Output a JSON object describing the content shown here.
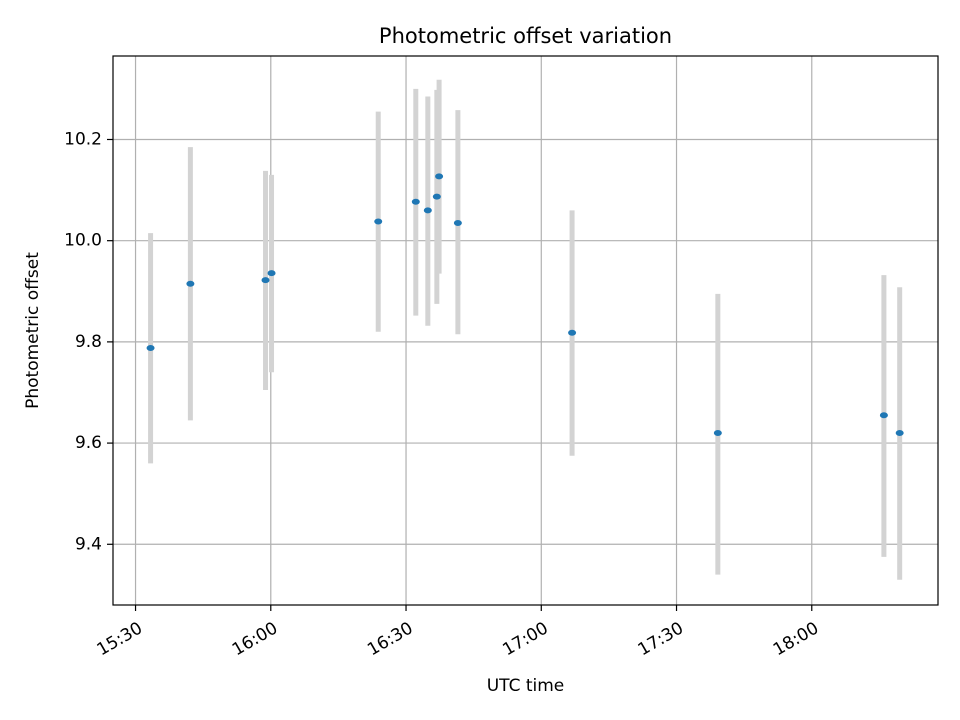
{
  "chart_data": {
    "type": "scatter",
    "title": "Photometric offset variation",
    "xlabel": "UTC time",
    "ylabel": "Photometric offset",
    "xlim": [
      "15:25",
      "18:28"
    ],
    "ylim": [
      9.28,
      10.365
    ],
    "grid": true,
    "x_ticks": [
      "15:30",
      "16:00",
      "16:30",
      "17:00",
      "17:30",
      "18:00"
    ],
    "y_ticks": [
      "9.4",
      "9.6",
      "9.8",
      "10.0",
      "10.2"
    ],
    "colors": {
      "point": "#1f77b4",
      "errorbar": "#d3d3d3",
      "grid": "#b0b0b0"
    },
    "points": [
      {
        "x": "15:33:20",
        "y": 9.788,
        "y_low": 9.56,
        "y_high": 10.015
      },
      {
        "x": "15:42:10",
        "y": 9.915,
        "y_low": 9.645,
        "y_high": 10.185
      },
      {
        "x": "15:58:50",
        "y": 9.922,
        "y_low": 9.705,
        "y_high": 10.138
      },
      {
        "x": "16:00:10",
        "y": 9.936,
        "y_low": 9.74,
        "y_high": 10.13
      },
      {
        "x": "16:23:50",
        "y": 10.038,
        "y_low": 9.82,
        "y_high": 10.255
      },
      {
        "x": "16:32:10",
        "y": 10.077,
        "y_low": 9.852,
        "y_high": 10.3
      },
      {
        "x": "16:34:50",
        "y": 10.06,
        "y_low": 9.832,
        "y_high": 10.285
      },
      {
        "x": "16:36:50",
        "y": 10.087,
        "y_low": 9.875,
        "y_high": 10.298
      },
      {
        "x": "16:37:20",
        "y": 10.127,
        "y_low": 9.935,
        "y_high": 10.318
      },
      {
        "x": "16:41:30",
        "y": 10.035,
        "y_low": 9.815,
        "y_high": 10.258
      },
      {
        "x": "17:06:50",
        "y": 9.818,
        "y_low": 9.575,
        "y_high": 10.06
      },
      {
        "x": "17:39:10",
        "y": 9.62,
        "y_low": 9.34,
        "y_high": 9.895
      },
      {
        "x": "18:16:00",
        "y": 9.655,
        "y_low": 9.375,
        "y_high": 9.932
      },
      {
        "x": "18:19:30",
        "y": 9.62,
        "y_low": 9.33,
        "y_high": 9.908
      }
    ]
  }
}
